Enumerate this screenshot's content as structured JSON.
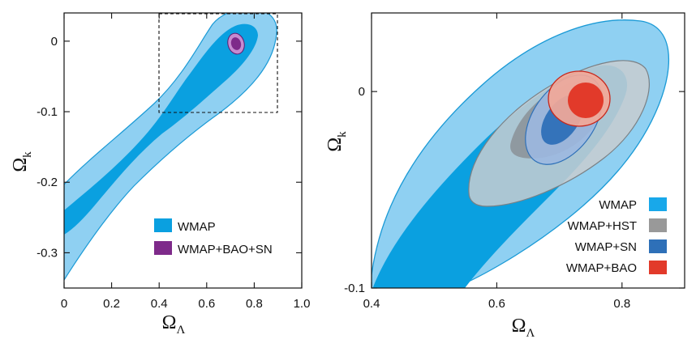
{
  "chart_data": [
    {
      "type": "contour",
      "panel": "left",
      "xlabel": "Ω",
      "xlabel_sub": "Λ",
      "ylabel": "Ω",
      "ylabel_sub": "k",
      "xlim": [
        0,
        1.0
      ],
      "ylim": [
        -0.35,
        0.04
      ],
      "xticks": [
        0,
        0.2,
        0.4,
        0.6,
        0.8,
        1.0
      ],
      "xtick_labels": [
        "0",
        "0.2",
        "0.4",
        "0.6",
        "0.8",
        "1.0"
      ],
      "yticks": [
        0,
        -0.1,
        -0.2,
        -0.3
      ],
      "ytick_labels": [
        "0",
        "-0.1",
        "-0.2",
        "-0.3"
      ],
      "zoom_box": {
        "x": [
          0.4,
          0.9
        ],
        "y": [
          -0.1,
          0.04
        ]
      },
      "series": [
        {
          "name": "WMAP",
          "color_outer": "#8fd0f2",
          "color_inner": "#0aa0e0",
          "region_95": [
            [
              0,
              -0.34
            ],
            [
              0,
              -0.22
            ],
            [
              0.2,
              -0.14
            ],
            [
              0.4,
              -0.07
            ],
            [
              0.55,
              0.0
            ],
            [
              0.6,
              0.02
            ],
            [
              0.8,
              0.04
            ],
            [
              0.9,
              0.03
            ],
            [
              0.88,
              -0.04
            ],
            [
              0.7,
              -0.12
            ],
            [
              0.4,
              -0.19
            ],
            [
              0.2,
              -0.26
            ],
            [
              0.05,
              -0.33
            ]
          ],
          "region_68": [
            [
              0,
              -0.28
            ],
            [
              0,
              -0.25
            ],
            [
              0.2,
              -0.17
            ],
            [
              0.4,
              -0.09
            ],
            [
              0.6,
              -0.0
            ],
            [
              0.78,
              0.02
            ],
            [
              0.85,
              0.0
            ],
            [
              0.75,
              -0.05
            ],
            [
              0.55,
              -0.1
            ],
            [
              0.3,
              -0.18
            ],
            [
              0.1,
              -0.25
            ]
          ]
        },
        {
          "name": "WMAP+BAO+SN",
          "color_outer": "#c68bd0",
          "color_inner": "#7e2a8a",
          "center": [
            0.72,
            -0.005
          ]
        }
      ],
      "legend": [
        "WMAP",
        "WMAP+BAO+SN"
      ],
      "legend_colors": [
        "#0aa0e0",
        "#7e2a8a"
      ]
    },
    {
      "type": "contour",
      "panel": "right",
      "xlabel": "Ω",
      "xlabel_sub": "Λ",
      "ylabel": "Ω",
      "ylabel_sub": "k",
      "xlim": [
        0.4,
        0.9
      ],
      "ylim": [
        -0.1,
        0.04
      ],
      "xticks": [
        0.4,
        0.6,
        0.8
      ],
      "xtick_labels": [
        "0.4",
        "0.6",
        "0.8"
      ],
      "yticks": [
        0,
        -0.1
      ],
      "ytick_labels": [
        "0",
        "-0.1"
      ],
      "series": [
        {
          "name": "WMAP",
          "color_outer": "#8fd0f2",
          "color_inner": "#0aa0e0"
        },
        {
          "name": "WMAP+HST",
          "color_outer": "#c8ccd0",
          "color_inner": "#8a9196",
          "center": [
            0.7,
            -0.017
          ]
        },
        {
          "name": "WMAP+SN",
          "color_outer": "#9cb8e0",
          "color_inner": "#2e70b8",
          "center": [
            0.695,
            -0.017
          ]
        },
        {
          "name": "WMAP+BAO",
          "color_outer": "#f2a898",
          "color_inner": "#e23a2a",
          "center": [
            0.73,
            -0.005
          ]
        }
      ],
      "legend": [
        "WMAP",
        "WMAP+HST",
        "WMAP+SN",
        "WMAP+BAO"
      ],
      "legend_colors": [
        "#18a8ea",
        "#999999",
        "#2e70b8",
        "#e23a2a"
      ]
    }
  ]
}
